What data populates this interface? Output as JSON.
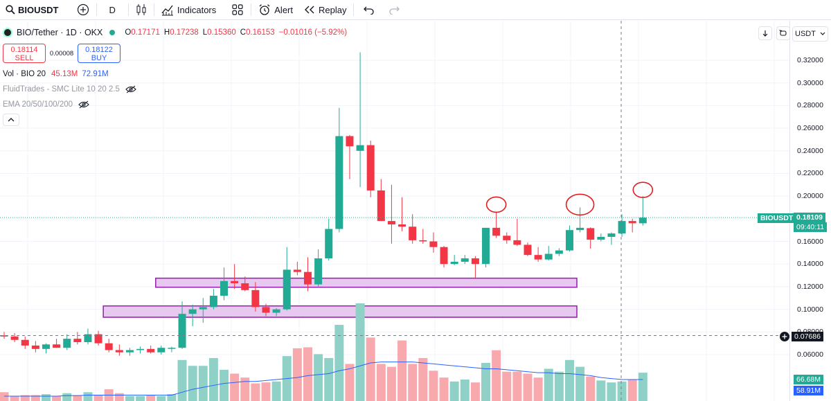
{
  "toolbar": {
    "symbol": "BIOUSDT",
    "interval": "D",
    "indicators_label": "Indicators",
    "alert_label": "Alert",
    "replay_label": "Replay"
  },
  "legend": {
    "title": "BIO/Tether · 1D · OKX",
    "open_key": "O",
    "open_val": "0.17171",
    "high_key": "H",
    "high_val": "0.17238",
    "low_key": "L",
    "low_val": "0.15360",
    "close_key": "C",
    "close_val": "0.16153",
    "change": "−0.01016 (−5.92%)"
  },
  "trade": {
    "sell_price": "0.18114",
    "sell_label": "SELL",
    "spread": "0.00008",
    "buy_price": "0.18122",
    "buy_label": "BUY"
  },
  "indicators": {
    "vol_label": "Vol · BIO 20",
    "vol_a": "45.13M",
    "vol_b": "72.91M",
    "fluid": "FluidTrades - SMC Lite 10 20 2.5",
    "ema": "EMA 20/50/100/200"
  },
  "axis": {
    "currency": "USDT",
    "ticks": [
      "0.32000",
      "0.30000",
      "0.28000",
      "0.26000",
      "0.24000",
      "0.22000",
      "0.20000",
      "0.18000",
      "0.16000",
      "0.14000",
      "0.12000",
      "0.10000",
      "0.08000",
      "0.06000"
    ],
    "tick_values": [
      0.32,
      0.3,
      0.28,
      0.26,
      0.24,
      0.22,
      0.2,
      0.18,
      0.16,
      0.14,
      0.12,
      0.1,
      0.08,
      0.06
    ],
    "current_symbol": "BIOUSDT",
    "current_price": "0.18109",
    "countdown": "09:40:11",
    "crosshair_price": "0.07686",
    "vol_ma_label": "66.68M",
    "vol_label2": "58.91M"
  },
  "colors": {
    "up": "#22ab94",
    "down": "#f23645",
    "vol_up": "#8fd1c6",
    "vol_down": "#f7a9ae",
    "zone_fill": "#e7c8ef",
    "zone_stroke": "#9c27b0",
    "circle": "#e02020",
    "vol_ma": "#2962ff"
  },
  "chart_data": {
    "type": "candlestick",
    "price_range": [
      0.05,
      0.33
    ],
    "candles": [
      {
        "o": 0.077,
        "h": 0.08,
        "l": 0.074,
        "c": 0.076
      },
      {
        "o": 0.076,
        "h": 0.079,
        "l": 0.071,
        "c": 0.073
      },
      {
        "o": 0.073,
        "h": 0.076,
        "l": 0.065,
        "c": 0.068
      },
      {
        "o": 0.068,
        "h": 0.072,
        "l": 0.062,
        "c": 0.065
      },
      {
        "o": 0.065,
        "h": 0.07,
        "l": 0.061,
        "c": 0.069
      },
      {
        "o": 0.069,
        "h": 0.074,
        "l": 0.066,
        "c": 0.066
      },
      {
        "o": 0.066,
        "h": 0.078,
        "l": 0.064,
        "c": 0.074
      },
      {
        "o": 0.074,
        "h": 0.08,
        "l": 0.069,
        "c": 0.071
      },
      {
        "o": 0.071,
        "h": 0.083,
        "l": 0.069,
        "c": 0.078
      },
      {
        "o": 0.078,
        "h": 0.081,
        "l": 0.068,
        "c": 0.07
      },
      {
        "o": 0.07,
        "h": 0.074,
        "l": 0.062,
        "c": 0.064
      },
      {
        "o": 0.064,
        "h": 0.069,
        "l": 0.059,
        "c": 0.062
      },
      {
        "o": 0.062,
        "h": 0.066,
        "l": 0.059,
        "c": 0.064
      },
      {
        "o": 0.064,
        "h": 0.067,
        "l": 0.061,
        "c": 0.065
      },
      {
        "o": 0.065,
        "h": 0.068,
        "l": 0.061,
        "c": 0.062
      },
      {
        "o": 0.062,
        "h": 0.068,
        "l": 0.06,
        "c": 0.066
      },
      {
        "o": 0.066,
        "h": 0.067,
        "l": 0.062,
        "c": 0.066
      },
      {
        "o": 0.066,
        "h": 0.107,
        "l": 0.065,
        "c": 0.096
      },
      {
        "o": 0.096,
        "h": 0.104,
        "l": 0.085,
        "c": 0.1
      },
      {
        "o": 0.1,
        "h": 0.11,
        "l": 0.088,
        "c": 0.102
      },
      {
        "o": 0.102,
        "h": 0.118,
        "l": 0.1,
        "c": 0.112
      },
      {
        "o": 0.112,
        "h": 0.137,
        "l": 0.108,
        "c": 0.125
      },
      {
        "o": 0.125,
        "h": 0.14,
        "l": 0.118,
        "c": 0.123
      },
      {
        "o": 0.123,
        "h": 0.129,
        "l": 0.116,
        "c": 0.117
      },
      {
        "o": 0.117,
        "h": 0.124,
        "l": 0.098,
        "c": 0.102
      },
      {
        "o": 0.102,
        "h": 0.105,
        "l": 0.094,
        "c": 0.097
      },
      {
        "o": 0.097,
        "h": 0.101,
        "l": 0.094,
        "c": 0.1
      },
      {
        "o": 0.1,
        "h": 0.155,
        "l": 0.099,
        "c": 0.135
      },
      {
        "o": 0.135,
        "h": 0.142,
        "l": 0.13,
        "c": 0.133
      },
      {
        "o": 0.133,
        "h": 0.146,
        "l": 0.116,
        "c": 0.122
      },
      {
        "o": 0.122,
        "h": 0.153,
        "l": 0.119,
        "c": 0.145
      },
      {
        "o": 0.145,
        "h": 0.18,
        "l": 0.143,
        "c": 0.171
      },
      {
        "o": 0.171,
        "h": 0.278,
        "l": 0.168,
        "c": 0.253
      },
      {
        "o": 0.253,
        "h": 0.254,
        "l": 0.215,
        "c": 0.244
      },
      {
        "o": 0.24,
        "h": 0.327,
        "l": 0.208,
        "c": 0.245
      },
      {
        "o": 0.245,
        "h": 0.249,
        "l": 0.199,
        "c": 0.205
      },
      {
        "o": 0.205,
        "h": 0.215,
        "l": 0.178,
        "c": 0.178
      },
      {
        "o": 0.178,
        "h": 0.21,
        "l": 0.158,
        "c": 0.175
      },
      {
        "o": 0.175,
        "h": 0.199,
        "l": 0.169,
        "c": 0.173
      },
      {
        "o": 0.173,
        "h": 0.184,
        "l": 0.158,
        "c": 0.161
      },
      {
        "o": 0.161,
        "h": 0.171,
        "l": 0.158,
        "c": 0.16
      },
      {
        "o": 0.16,
        "h": 0.168,
        "l": 0.15,
        "c": 0.155
      },
      {
        "o": 0.155,
        "h": 0.156,
        "l": 0.137,
        "c": 0.14
      },
      {
        "o": 0.14,
        "h": 0.148,
        "l": 0.139,
        "c": 0.142
      },
      {
        "o": 0.142,
        "h": 0.148,
        "l": 0.14,
        "c": 0.145
      },
      {
        "o": 0.145,
        "h": 0.147,
        "l": 0.128,
        "c": 0.14
      },
      {
        "o": 0.14,
        "h": 0.172,
        "l": 0.137,
        "c": 0.172
      },
      {
        "o": 0.172,
        "h": 0.186,
        "l": 0.163,
        "c": 0.165
      },
      {
        "o": 0.165,
        "h": 0.168,
        "l": 0.158,
        "c": 0.161
      },
      {
        "o": 0.161,
        "h": 0.18,
        "l": 0.156,
        "c": 0.157
      },
      {
        "o": 0.157,
        "h": 0.159,
        "l": 0.147,
        "c": 0.148
      },
      {
        "o": 0.148,
        "h": 0.155,
        "l": 0.142,
        "c": 0.144
      },
      {
        "o": 0.144,
        "h": 0.156,
        "l": 0.143,
        "c": 0.149
      },
      {
        "o": 0.149,
        "h": 0.154,
        "l": 0.147,
        "c": 0.152
      },
      {
        "o": 0.152,
        "h": 0.174,
        "l": 0.151,
        "c": 0.17
      },
      {
        "o": 0.17,
        "h": 0.19,
        "l": 0.168,
        "c": 0.172
      },
      {
        "o": 0.1717,
        "h": 0.1724,
        "l": 0.1536,
        "c": 0.1615
      },
      {
        "o": 0.1615,
        "h": 0.167,
        "l": 0.16,
        "c": 0.164
      },
      {
        "o": 0.164,
        "h": 0.168,
        "l": 0.157,
        "c": 0.167
      },
      {
        "o": 0.167,
        "h": 0.184,
        "l": 0.164,
        "c": 0.178
      },
      {
        "o": 0.178,
        "h": 0.18,
        "l": 0.168,
        "c": 0.176
      },
      {
        "o": 0.176,
        "h": 0.2,
        "l": 0.174,
        "c": 0.181
      }
    ],
    "volume_rel": [
      0.09,
      0.05,
      0.06,
      0.06,
      0.07,
      0.05,
      0.08,
      0.06,
      0.09,
      0.06,
      0.12,
      0.08,
      0.05,
      0.05,
      0.06,
      0.05,
      0.07,
      0.42,
      0.36,
      0.36,
      0.44,
      0.32,
      0.28,
      0.24,
      0.18,
      0.19,
      0.2,
      0.46,
      0.54,
      0.55,
      0.48,
      0.44,
      0.78,
      0.38,
      1.0,
      0.65,
      0.38,
      0.35,
      0.62,
      0.38,
      0.44,
      0.31,
      0.24,
      0.2,
      0.22,
      0.19,
      0.39,
      0.52,
      0.3,
      0.3,
      0.28,
      0.24,
      0.33,
      0.3,
      0.42,
      0.35,
      0.25,
      0.21,
      0.19,
      0.2,
      0.22,
      0.29
    ],
    "volume_ma_rel": [
      0.05,
      0.05,
      0.05,
      0.05,
      0.05,
      0.05,
      0.055,
      0.055,
      0.06,
      0.06,
      0.06,
      0.06,
      0.06,
      0.06,
      0.06,
      0.06,
      0.06,
      0.09,
      0.12,
      0.14,
      0.16,
      0.18,
      0.19,
      0.2,
      0.2,
      0.21,
      0.22,
      0.23,
      0.24,
      0.26,
      0.27,
      0.28,
      0.31,
      0.33,
      0.36,
      0.39,
      0.4,
      0.4,
      0.4,
      0.4,
      0.39,
      0.38,
      0.37,
      0.36,
      0.35,
      0.34,
      0.33,
      0.33,
      0.32,
      0.31,
      0.3,
      0.29,
      0.29,
      0.28,
      0.28,
      0.27,
      0.26,
      0.24,
      0.23,
      0.22,
      0.22,
      0.22
    ],
    "zones": [
      {
        "top": 0.1275,
        "bottom": 0.1195,
        "from_index": 15,
        "to_index": 55
      },
      {
        "top": 0.103,
        "bottom": 0.093,
        "from_index": 10,
        "to_index": 55
      }
    ],
    "circles": [
      {
        "index": 47,
        "price": 0.1925
      },
      {
        "index": 55,
        "price": 0.1925
      },
      {
        "index": 61,
        "price": 0.2055
      }
    ]
  }
}
